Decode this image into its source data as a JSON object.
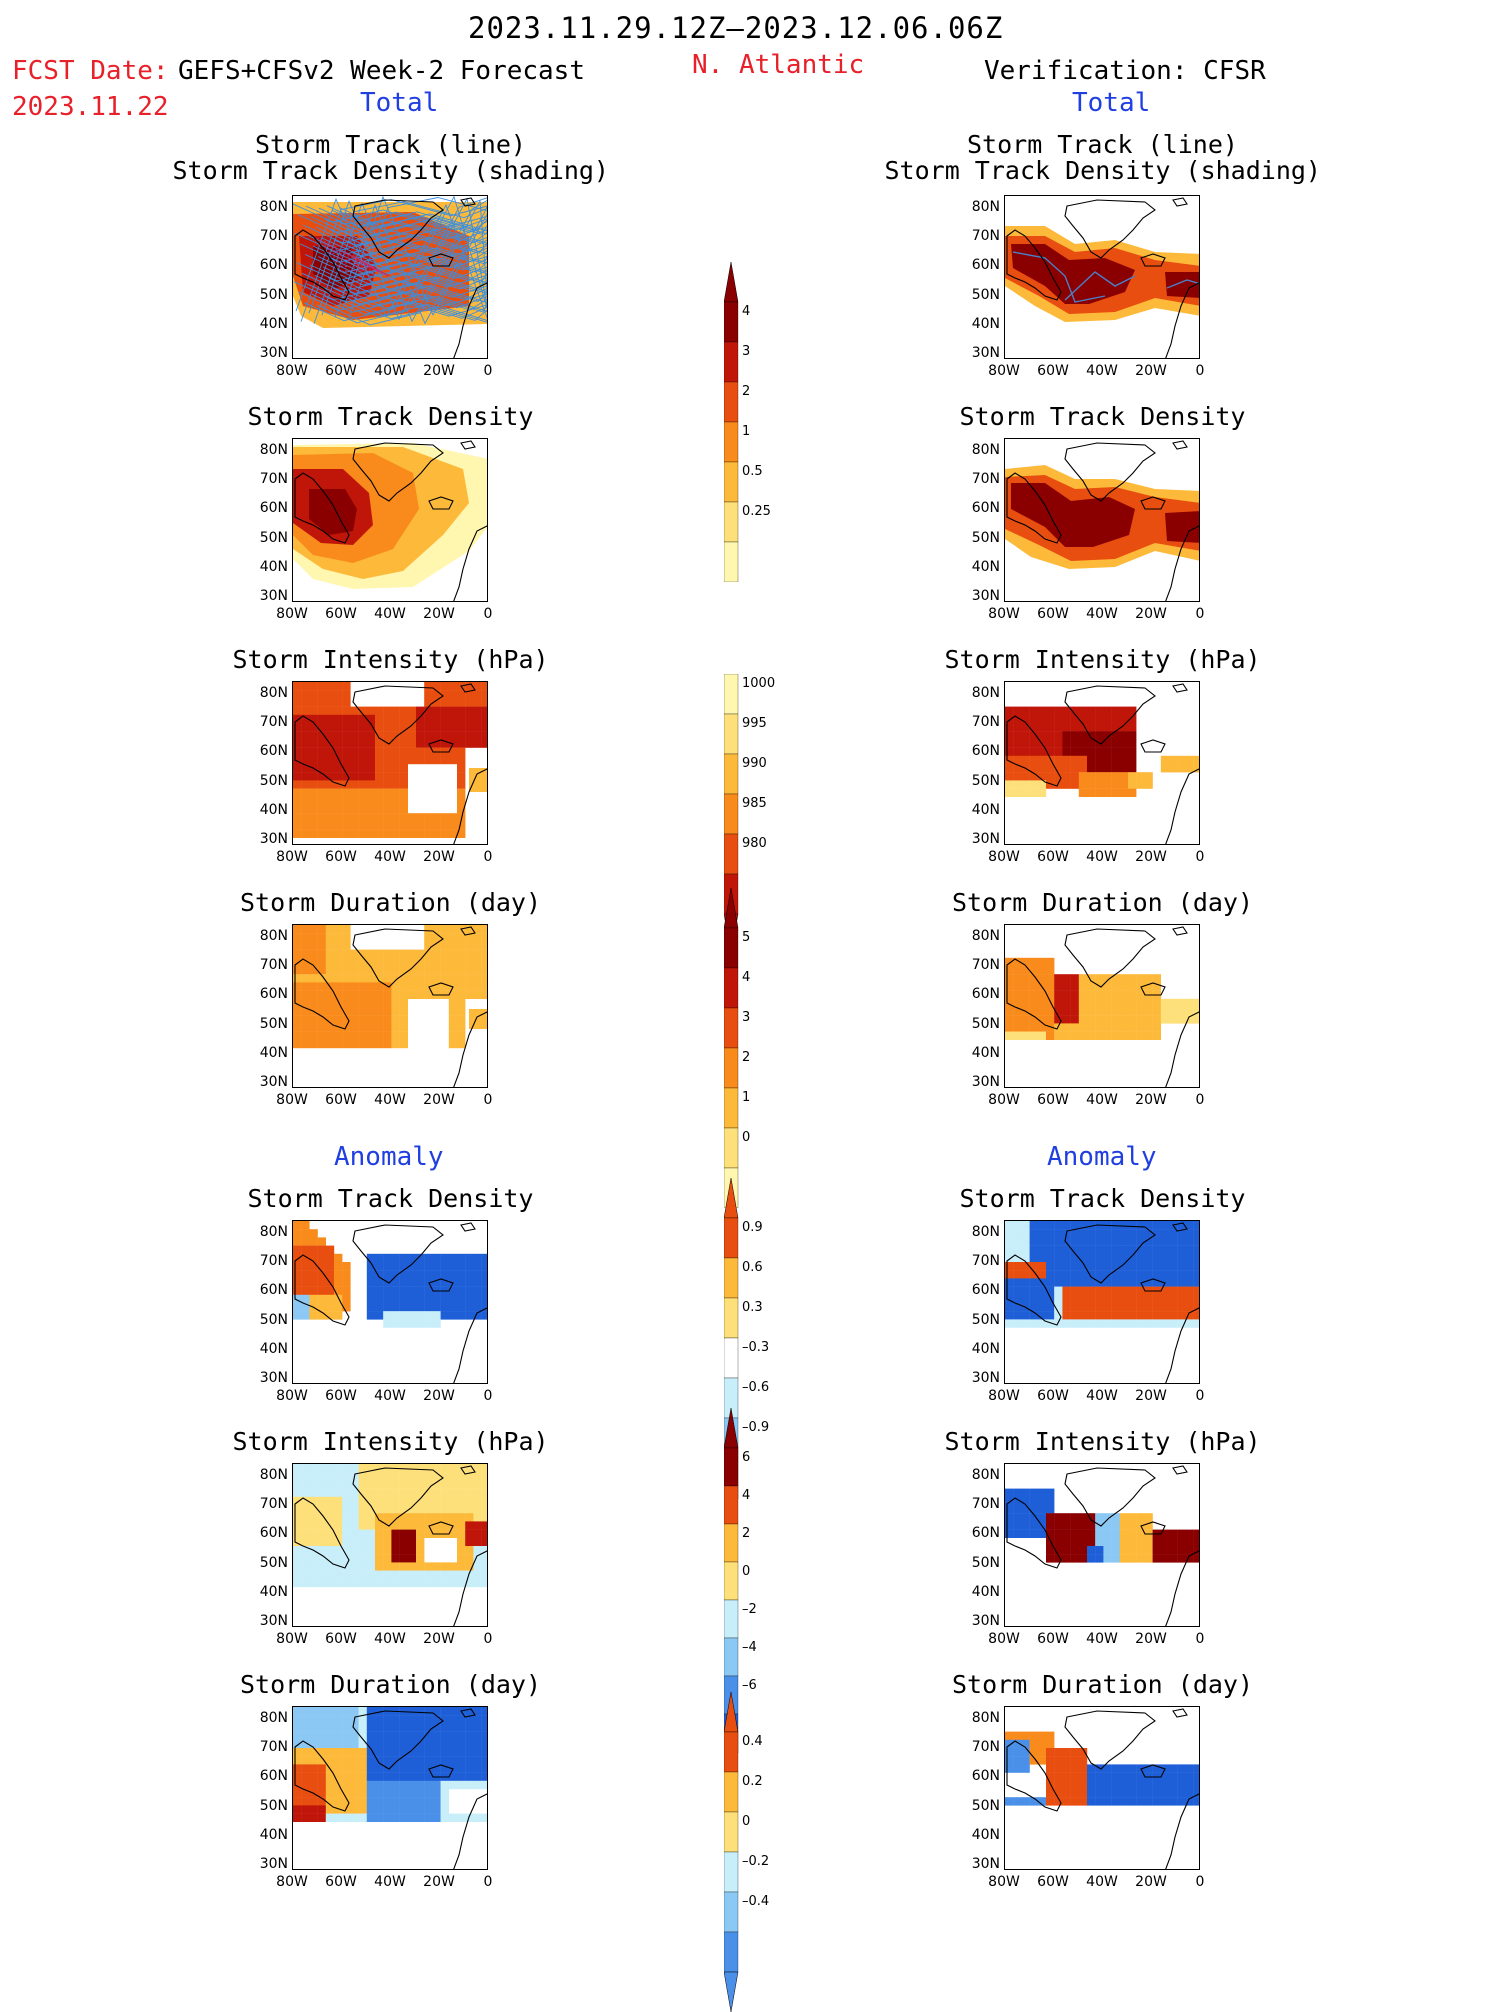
{
  "header": {
    "period": "2023.11.29.12Z–2023.12.06.06Z",
    "fcst_prefix": "FCST Date:",
    "fcst_date": "2023.11.22",
    "model": "GEFS+CFSv2 Week-2 Forecast",
    "region": "N. Atlantic",
    "verification": "Verification: CFSR"
  },
  "sections": {
    "total": "Total",
    "anomaly": "Anomaly"
  },
  "panel_titles": {
    "track_line": "Storm Track (line)",
    "track_shading": "Storm Track Density (shading)",
    "density": "Storm Track Density",
    "intensity": "Storm Intensity (hPa)",
    "duration": "Storm Duration (day)"
  },
  "axes": {
    "lat_ticks": [
      "80N",
      "70N",
      "60N",
      "50N",
      "40N",
      "30N"
    ],
    "lon_ticks": [
      "80W",
      "60W",
      "40W",
      "20W",
      "0"
    ]
  },
  "colorbars": {
    "total_density": [
      "4",
      "3",
      "2",
      "1",
      "0.5",
      "0.25"
    ],
    "total_intensity": [
      "1000",
      "995",
      "990",
      "985",
      "980"
    ],
    "total_duration": [
      "5",
      "4",
      "3",
      "2",
      "1",
      "0"
    ],
    "anom_density": [
      "0.9",
      "0.6",
      "0.3",
      "–0.3",
      "–0.6",
      "–0.9"
    ],
    "anom_intensity": [
      "6",
      "4",
      "2",
      "0",
      "–2",
      "–4",
      "–6"
    ],
    "anom_duration": [
      "0.4",
      "0.2",
      "0",
      "–0.2",
      "–0.4"
    ]
  },
  "colors": {
    "warm": [
      "#fff7b0",
      "#fde07a",
      "#fdb93a",
      "#f98b1c",
      "#e84e0f",
      "#c0160a",
      "#8a0000"
    ],
    "cool": [
      "#c8eefa",
      "#8cc8f4",
      "#4a90e8",
      "#1e5fd8"
    ],
    "track_line": "#3a8fe0"
  }
}
